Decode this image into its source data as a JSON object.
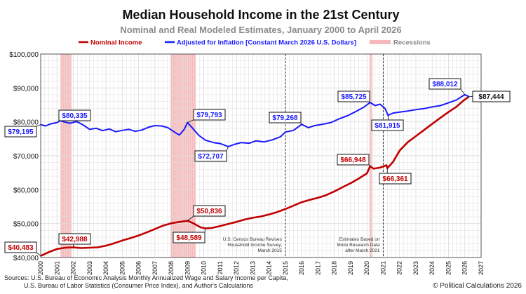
{
  "chart_data": {
    "type": "line",
    "title": "Median Household Income in the 21st Century",
    "subtitle": "Nominal and Real Modeled Estimates, January 2000 to April 2026",
    "xlabel": "",
    "ylabel": "",
    "xlim": [
      2000,
      2027
    ],
    "ylim": [
      40000,
      100000
    ],
    "x_ticks": [
      "2000",
      "2001",
      "2002",
      "2003",
      "2004",
      "2005",
      "2006",
      "2007",
      "2008",
      "2009",
      "2010",
      "2011",
      "2012",
      "2013",
      "2014",
      "2015",
      "2016",
      "2017",
      "2018",
      "2019",
      "2020",
      "2021",
      "2022",
      "2023",
      "2024",
      "2025",
      "2026",
      "2027"
    ],
    "y_ticks": [
      {
        "v": 40000,
        "label": "$40,000"
      },
      {
        "v": 50000,
        "label": "$50,000"
      },
      {
        "v": 60000,
        "label": "$60,000"
      },
      {
        "v": 70000,
        "label": "$70,000"
      },
      {
        "v": 80000,
        "label": "$80,000"
      },
      {
        "v": 90000,
        "label": "$90,000"
      },
      {
        "v": 100000,
        "label": "$100,000"
      }
    ],
    "grid": true,
    "legend_position": "top",
    "legend": [
      {
        "label": "Nominal Income",
        "kind": "line",
        "color": "#c00000"
      },
      {
        "label": "Adjusted for Inflation [Constant March 2026 U.S. Dollars]",
        "kind": "line",
        "color": "#1a1aff"
      },
      {
        "label": "Recessions",
        "kind": "band",
        "color": "#f6b8b8"
      }
    ],
    "recessions": [
      {
        "start": 2001.2,
        "end": 2001.9
      },
      {
        "start": 2007.95,
        "end": 2009.5
      },
      {
        "start": 2020.15,
        "end": 2020.35
      }
    ],
    "series": [
      {
        "name": "Nominal Income",
        "color": "#c00000",
        "points": [
          [
            2000.0,
            40483
          ],
          [
            2000.5,
            41600
          ],
          [
            2001.0,
            42500
          ],
          [
            2001.5,
            42900
          ],
          [
            2002.0,
            42988
          ],
          [
            2002.5,
            42800
          ],
          [
            2003.0,
            42900
          ],
          [
            2003.5,
            43000
          ],
          [
            2004.0,
            43500
          ],
          [
            2004.5,
            44200
          ],
          [
            2005.0,
            45000
          ],
          [
            2005.5,
            45700
          ],
          [
            2006.0,
            46500
          ],
          [
            2006.5,
            47400
          ],
          [
            2007.0,
            48400
          ],
          [
            2007.5,
            49400
          ],
          [
            2008.0,
            50100
          ],
          [
            2008.5,
            50500
          ],
          [
            2009.0,
            50836
          ],
          [
            2009.4,
            50000
          ],
          [
            2009.8,
            48900
          ],
          [
            2010.1,
            48589
          ],
          [
            2010.5,
            48700
          ],
          [
            2011.0,
            49300
          ],
          [
            2011.5,
            49900
          ],
          [
            2012.0,
            50500
          ],
          [
            2012.5,
            51200
          ],
          [
            2013.0,
            51700
          ],
          [
            2013.5,
            52100
          ],
          [
            2014.0,
            52700
          ],
          [
            2014.5,
            53400
          ],
          [
            2015.0,
            54300
          ],
          [
            2015.5,
            55300
          ],
          [
            2016.0,
            56300
          ],
          [
            2016.5,
            57000
          ],
          [
            2017.0,
            57600
          ],
          [
            2017.5,
            58400
          ],
          [
            2018.0,
            59500
          ],
          [
            2018.5,
            60700
          ],
          [
            2019.0,
            61900
          ],
          [
            2019.5,
            63300
          ],
          [
            2020.0,
            64800
          ],
          [
            2020.2,
            66948
          ],
          [
            2020.4,
            66200
          ],
          [
            2020.8,
            66500
          ],
          [
            2021.2,
            67200
          ],
          [
            2021.25,
            66361
          ],
          [
            2021.6,
            68200
          ],
          [
            2022.0,
            71500
          ],
          [
            2022.5,
            74000
          ],
          [
            2023.0,
            75800
          ],
          [
            2023.5,
            77600
          ],
          [
            2024.0,
            79400
          ],
          [
            2024.5,
            81200
          ],
          [
            2025.0,
            82900
          ],
          [
            2025.5,
            84500
          ],
          [
            2025.9,
            86200
          ],
          [
            2026.25,
            87444
          ]
        ]
      },
      {
        "name": "Adjusted for Inflation [Constant March 2026 U.S. Dollars]",
        "color": "#1a1aff",
        "points": [
          [
            2000.0,
            79195
          ],
          [
            2000.3,
            78800
          ],
          [
            2000.6,
            79400
          ],
          [
            2001.0,
            79800
          ],
          [
            2001.2,
            80335
          ],
          [
            2001.5,
            79900
          ],
          [
            2001.8,
            79600
          ],
          [
            2002.2,
            80100
          ],
          [
            2002.6,
            79100
          ],
          [
            2003.0,
            77800
          ],
          [
            2003.4,
            78100
          ],
          [
            2003.8,
            77400
          ],
          [
            2004.2,
            77900
          ],
          [
            2004.6,
            77100
          ],
          [
            2005.0,
            77500
          ],
          [
            2005.4,
            77800
          ],
          [
            2005.8,
            77200
          ],
          [
            2006.2,
            77600
          ],
          [
            2006.6,
            78400
          ],
          [
            2007.0,
            78900
          ],
          [
            2007.4,
            78800
          ],
          [
            2007.8,
            78300
          ],
          [
            2008.2,
            77000
          ],
          [
            2008.5,
            76100
          ],
          [
            2008.8,
            77800
          ],
          [
            2009.0,
            79793
          ],
          [
            2009.3,
            78200
          ],
          [
            2009.7,
            76000
          ],
          [
            2010.1,
            74600
          ],
          [
            2010.6,
            73900
          ],
          [
            2011.0,
            73600
          ],
          [
            2011.5,
            72707
          ],
          [
            2011.9,
            73400
          ],
          [
            2012.3,
            73900
          ],
          [
            2012.8,
            73700
          ],
          [
            2013.2,
            74400
          ],
          [
            2013.7,
            74100
          ],
          [
            2014.2,
            74700
          ],
          [
            2014.7,
            75600
          ],
          [
            2015.0,
            77000
          ],
          [
            2015.5,
            77500
          ],
          [
            2016.0,
            79268
          ],
          [
            2016.4,
            78300
          ],
          [
            2016.8,
            78900
          ],
          [
            2017.3,
            79300
          ],
          [
            2017.8,
            79800
          ],
          [
            2018.3,
            80900
          ],
          [
            2018.8,
            81800
          ],
          [
            2019.3,
            83000
          ],
          [
            2019.8,
            84300
          ],
          [
            2020.2,
            85725
          ],
          [
            2020.5,
            84800
          ],
          [
            2020.8,
            85200
          ],
          [
            2021.1,
            84000
          ],
          [
            2021.3,
            81915
          ],
          [
            2021.6,
            82600
          ],
          [
            2022.0,
            82900
          ],
          [
            2022.5,
            83200
          ],
          [
            2023.0,
            83600
          ],
          [
            2023.5,
            83900
          ],
          [
            2024.0,
            84400
          ],
          [
            2024.5,
            84800
          ],
          [
            2025.0,
            85600
          ],
          [
            2025.5,
            86500
          ],
          [
            2026.0,
            88012
          ],
          [
            2026.25,
            87444
          ]
        ]
      }
    ],
    "callouts": [
      {
        "label": "$40,483",
        "series": "nominal"
      },
      {
        "label": "$42,988",
        "series": "nominal"
      },
      {
        "label": "$50,836",
        "series": "nominal"
      },
      {
        "label": "$48,589",
        "series": "nominal"
      },
      {
        "label": "$66,948",
        "series": "nominal"
      },
      {
        "label": "$66,361",
        "series": "nominal"
      },
      {
        "label": "$79,195",
        "series": "real"
      },
      {
        "label": "$80,335",
        "series": "real"
      },
      {
        "label": "$79,793",
        "series": "real"
      },
      {
        "label": "$72,707",
        "series": "real"
      },
      {
        "label": "$79,268",
        "series": "real"
      },
      {
        "label": "$85,725",
        "series": "real"
      },
      {
        "label": "$81,915",
        "series": "real"
      },
      {
        "label": "$88,012",
        "series": "real"
      },
      {
        "label": "$87,444",
        "series": "both"
      }
    ],
    "annotations": [
      {
        "x": 2015.0,
        "lines": [
          "U.S. Census Bureau Revises",
          "Household Income Survey,",
          "March 2015"
        ]
      },
      {
        "x": 2021.0,
        "lines": [
          "Estimates Based on",
          "Motio Research Data",
          "after March 2021"
        ]
      }
    ],
    "source": [
      "Sources: U.S. Bureau of Economic Analysis Monthly Annualized Wage and Salary Income per Capita,",
      "U.S. Bureau of Labor Statistics (Consumer Price Index), and Author's Calculations"
    ],
    "credit": "© Political Calculations 2026"
  }
}
